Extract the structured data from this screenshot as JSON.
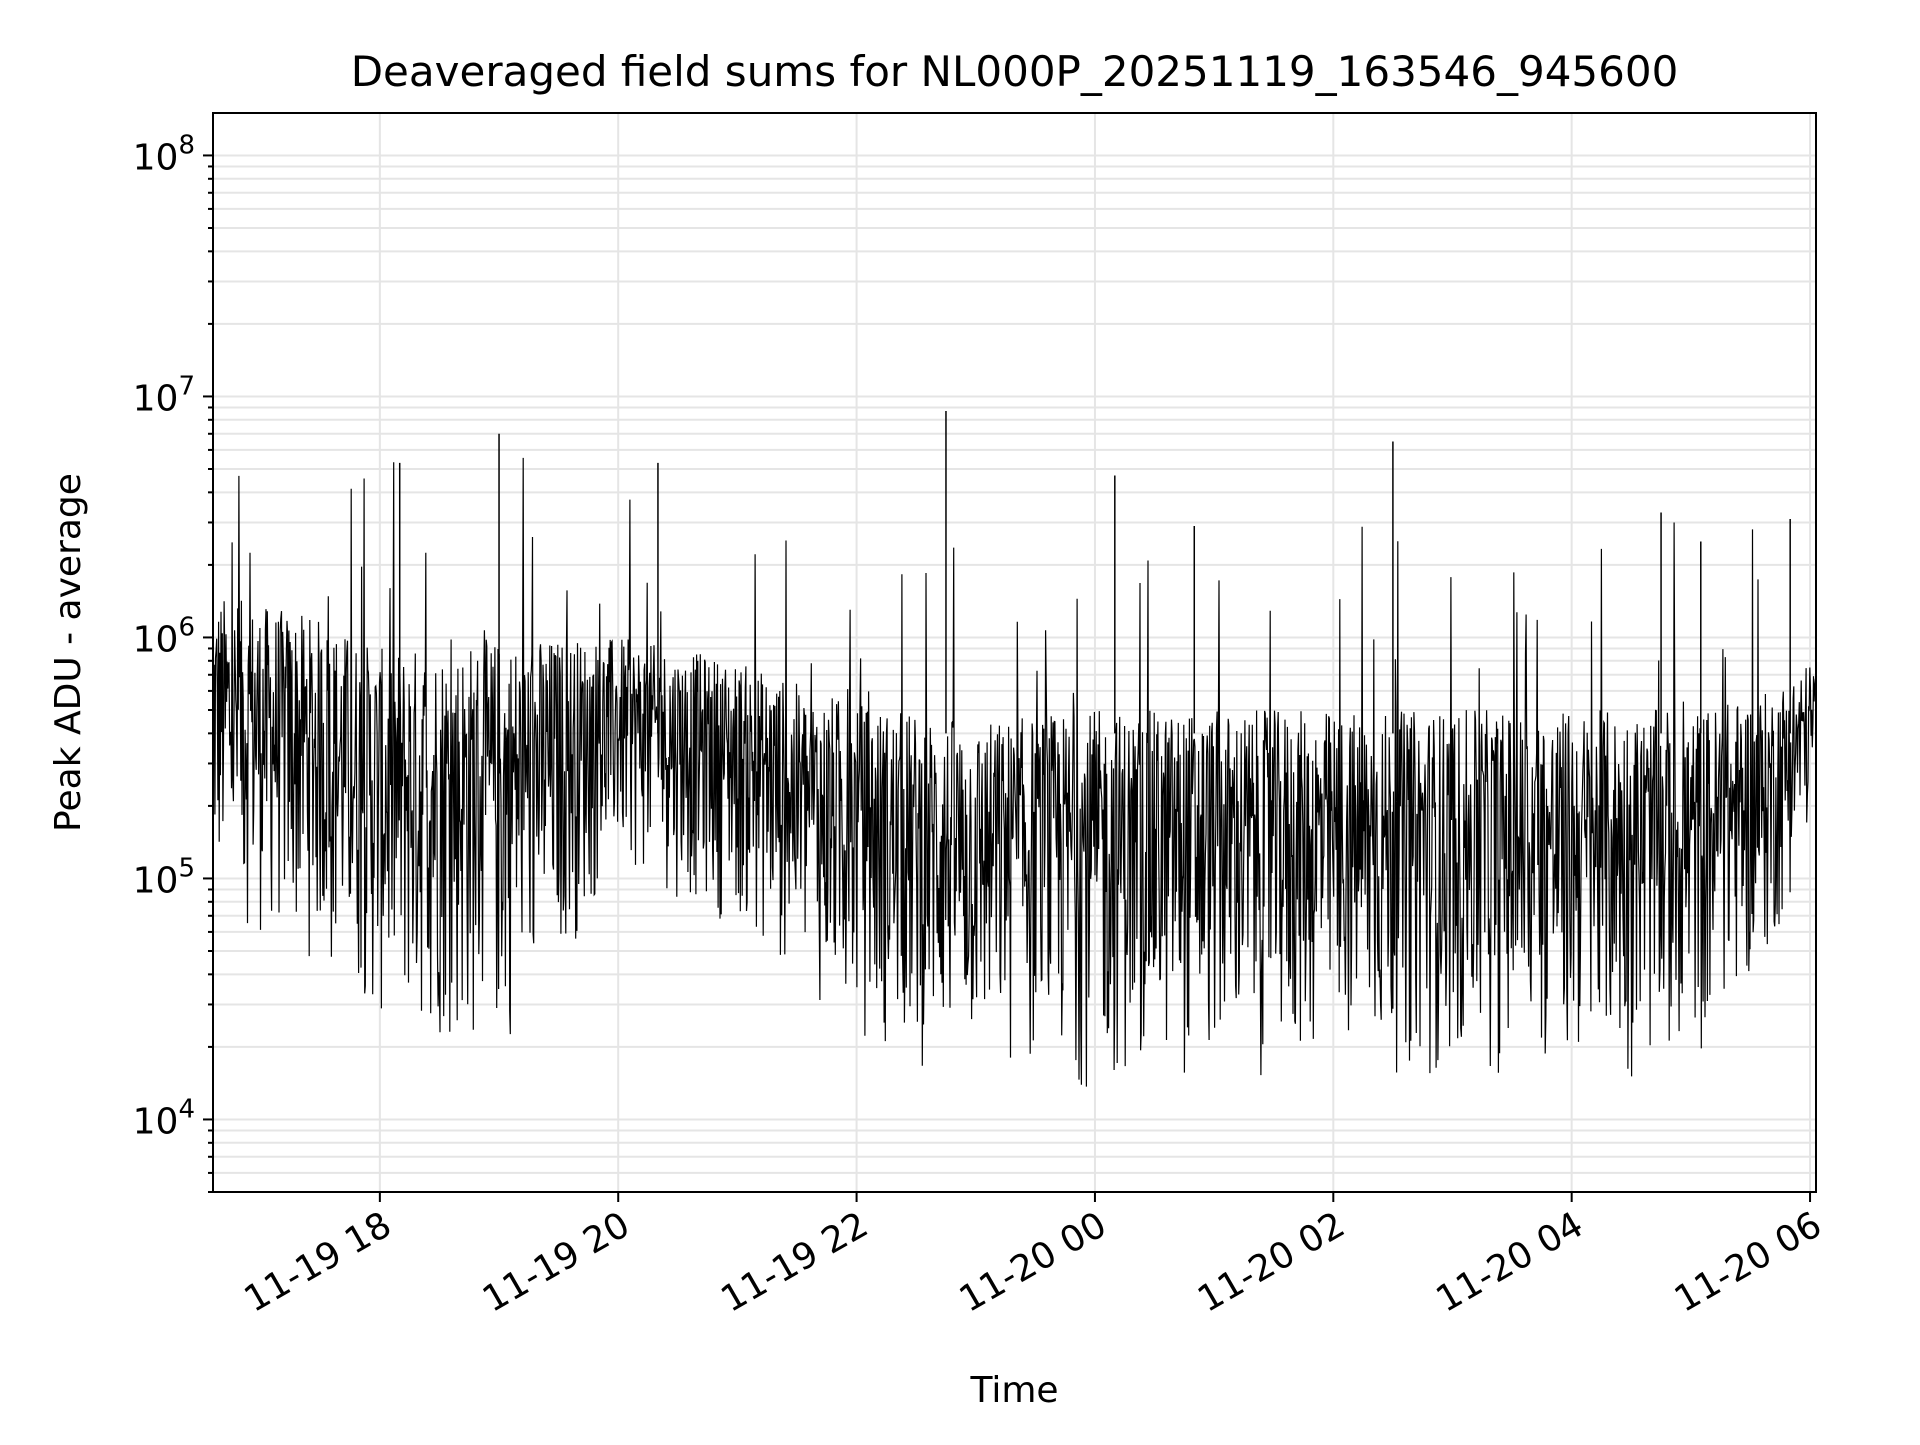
{
  "chart_data": {
    "type": "line",
    "title": "Deaveraged field sums for NL000P_20251119_163546_945600",
    "xlabel": "Time",
    "ylabel": "Peak ADU - average",
    "xscale": "time",
    "yscale": "log",
    "xlim": [
      "2025-11-19 16:36",
      "2025-11-20 06:03"
    ],
    "ylim": [
      5000,
      150000000
    ],
    "x_ticks": [
      "11-19 18",
      "11-19 20",
      "11-19 22",
      "11-20 00",
      "11-20 02",
      "11-20 04",
      "11-20 06"
    ],
    "y_ticks": [
      "10^4",
      "10^5",
      "10^6",
      "10^7",
      "10^8"
    ],
    "grid": true,
    "line_color": "#000000",
    "grid_color": "#e5e5e5",
    "series": [
      {
        "values_summary": "dense noisy signal; lower envelope",
        "x": [
          "2025-11-19 16:40",
          "2025-11-19 17:30",
          "2025-11-19 18:00",
          "2025-11-19 19:00",
          "2025-11-19 20:00",
          "2025-11-19 21:00",
          "2025-11-19 21:40",
          "2025-11-19 22:20",
          "2025-11-19 23:00",
          "2025-11-20 00:00",
          "2025-11-20 01:00",
          "2025-11-20 02:00",
          "2025-11-20 03:00",
          "2025-11-20 04:00",
          "2025-11-20 05:00",
          "2025-11-20 05:40",
          "2025-11-20 06:00"
        ],
        "y": [
          60000,
          40000,
          20000,
          15000,
          100000,
          60000,
          25000,
          15000,
          14000,
          12000,
          14000,
          14000,
          14000,
          13000,
          14000,
          40000,
          150000
        ]
      },
      {
        "x": [
          "2025-11-19 16:40",
          "2025-11-19 17:30",
          "2025-11-19 18:00",
          "2025-11-19 19:00",
          "2025-11-19 20:00",
          "2025-11-19 21:00",
          "2025-11-19 21:40",
          "2025-11-19 22:20",
          "2025-11-19 23:00",
          "2025-11-20 00:00",
          "2025-11-20 01:00",
          "2025-11-20 02:00",
          "2025-11-20 03:00",
          "2025-11-20 04:00",
          "2025-11-20 05:00",
          "2025-11-20 05:40",
          "2025-11-20 06:00"
        ],
        "y": [
          1500000,
          1200000,
          900000,
          1000000,
          1000000,
          800000,
          600000,
          500000,
          450000,
          500000,
          500000,
          500000,
          500000,
          500000,
          500000,
          600000,
          800000
        ]
      }
    ],
    "spikes": [
      {
        "x": "2025-11-19 22:45",
        "y": 8700000
      },
      {
        "x": "2025-11-19 19:00",
        "y": 7000000
      },
      {
        "x": "2025-11-20 02:30",
        "y": 6500000
      },
      {
        "x": "2025-11-19 18:10",
        "y": 5300000
      },
      {
        "x": "2025-11-19 20:20",
        "y": 5300000
      },
      {
        "x": "2025-11-20 00:10",
        "y": 4700000
      },
      {
        "x": "2025-11-20 04:45",
        "y": 3300000
      },
      {
        "x": "2025-11-20 00:50",
        "y": 2900000
      },
      {
        "x": "2025-11-20 05:50",
        "y": 3100000
      },
      {
        "x": "2025-11-20 05:05",
        "y": 2500000
      }
    ]
  }
}
